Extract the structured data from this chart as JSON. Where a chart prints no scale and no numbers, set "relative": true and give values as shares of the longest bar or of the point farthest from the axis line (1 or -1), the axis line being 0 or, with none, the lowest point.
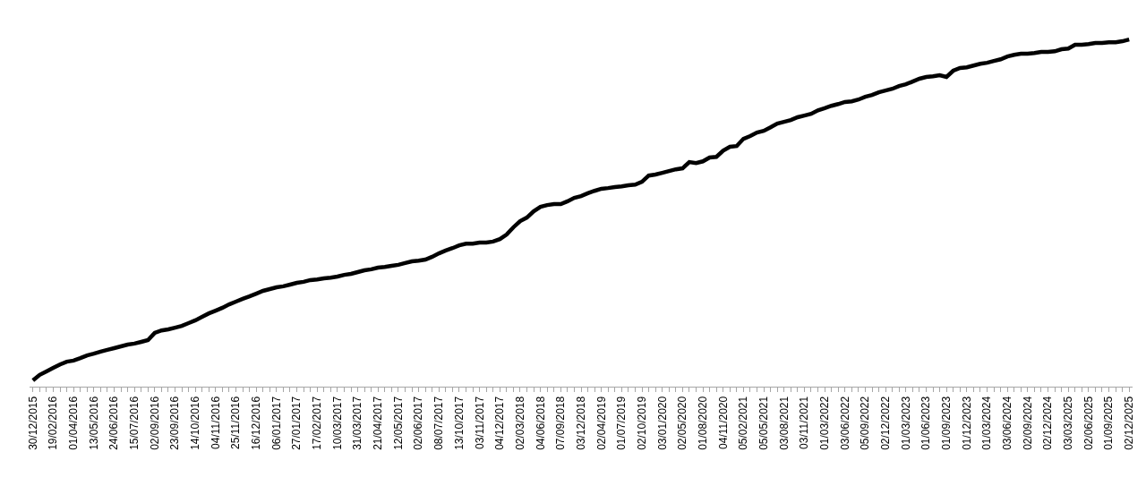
{
  "chart_data": {
    "type": "line",
    "relative": true,
    "color": "#000000",
    "marker": "none",
    "line_style": "solid",
    "categories": [
      "30/12/2015",
      null,
      null,
      "19/02/2016",
      null,
      null,
      "01/04/2016",
      null,
      null,
      "13/05/2016",
      null,
      null,
      "24/06/2016",
      null,
      null,
      "15/07/2016",
      null,
      null,
      "02/09/2016",
      null,
      null,
      "23/09/2016",
      null,
      null,
      "14/10/2016",
      null,
      null,
      "04/11/2016",
      null,
      null,
      "25/11/2016",
      null,
      null,
      "16/12/2016",
      null,
      null,
      "06/01/2017",
      null,
      null,
      "27/01/2017",
      null,
      null,
      "17/02/2017",
      null,
      null,
      "10/03/2017",
      null,
      null,
      "31/03/2017",
      null,
      null,
      "21/04/2017",
      null,
      null,
      "12/05/2017",
      null,
      null,
      "02/06/2017",
      null,
      null,
      "08/07/2017",
      null,
      null,
      "13/10/2017",
      null,
      null,
      "03/11/2017",
      null,
      null,
      "04/12/2017",
      null,
      null,
      "02/03/2018",
      null,
      null,
      "04/06/2018",
      null,
      null,
      "07/09/2018",
      null,
      null,
      "03/12/2018",
      null,
      null,
      "02/04/2019",
      null,
      null,
      "01/07/2019",
      null,
      null,
      "02/10/2019",
      null,
      null,
      "03/01/2020",
      null,
      null,
      "02/05/2020",
      null,
      null,
      "01/08/2020",
      null,
      null,
      "04/11/2020",
      null,
      null,
      "05/02/2021",
      null,
      null,
      "05/05/2021",
      null,
      null,
      "03/08/2021",
      null,
      null,
      "03/11/2021",
      null,
      null,
      "01/03/2022",
      null,
      null,
      "03/06/2022",
      null,
      null,
      "05/09/2022",
      null,
      null,
      "02/12/2022",
      null,
      null,
      "01/03/2023",
      null,
      null,
      "01/06/2023",
      null,
      null,
      "01/09/2023",
      null,
      null,
      "01/12/2023",
      null,
      null,
      "01/03/2024",
      null,
      null,
      "03/06/2024",
      null,
      null,
      "02/09/2024",
      null,
      null,
      "02/12/2024",
      null,
      null,
      "03/03/2025",
      null,
      null,
      "02/06/2025",
      null,
      null,
      "01/09/2025",
      null,
      null,
      "02/12/2025"
    ],
    "values": [
      0.018,
      0.034,
      0.044,
      0.054,
      0.064,
      0.072,
      0.075,
      0.082,
      0.09,
      0.095,
      0.101,
      0.106,
      0.111,
      0.116,
      0.121,
      0.124,
      0.129,
      0.134,
      0.155,
      0.162,
      0.165,
      0.17,
      0.175,
      0.183,
      0.191,
      0.201,
      0.211,
      0.219,
      0.227,
      0.237,
      0.245,
      0.253,
      0.26,
      0.268,
      0.276,
      0.281,
      0.286,
      0.289,
      0.294,
      0.299,
      0.302,
      0.307,
      0.309,
      0.312,
      0.314,
      0.317,
      0.322,
      0.325,
      0.33,
      0.335,
      0.338,
      0.343,
      0.345,
      0.348,
      0.351,
      0.356,
      0.361,
      0.363,
      0.366,
      0.374,
      0.384,
      0.392,
      0.399,
      0.407,
      0.412,
      0.412,
      0.415,
      0.415,
      0.418,
      0.425,
      0.438,
      0.459,
      0.477,
      0.487,
      0.505,
      0.518,
      0.523,
      0.526,
      0.526,
      0.534,
      0.544,
      0.549,
      0.557,
      0.564,
      0.57,
      0.572,
      0.575,
      0.577,
      0.58,
      0.582,
      0.59,
      0.608,
      0.611,
      0.616,
      0.621,
      0.626,
      0.629,
      0.647,
      0.644,
      0.649,
      0.66,
      0.662,
      0.68,
      0.691,
      0.693,
      0.714,
      0.722,
      0.732,
      0.737,
      0.747,
      0.758,
      0.763,
      0.768,
      0.776,
      0.781,
      0.786,
      0.796,
      0.802,
      0.809,
      0.814,
      0.82,
      0.822,
      0.827,
      0.835,
      0.84,
      0.848,
      0.853,
      0.858,
      0.866,
      0.871,
      0.879,
      0.887,
      0.892,
      0.894,
      0.897,
      0.892,
      0.91,
      0.918,
      0.92,
      0.925,
      0.93,
      0.933,
      0.938,
      0.943,
      0.951,
      0.956,
      0.959,
      0.959,
      0.961,
      0.964,
      0.964,
      0.966,
      0.972,
      0.974,
      0.985,
      0.985,
      0.987,
      0.99,
      0.99,
      0.992,
      0.992,
      0.995,
      1.0
    ]
  }
}
